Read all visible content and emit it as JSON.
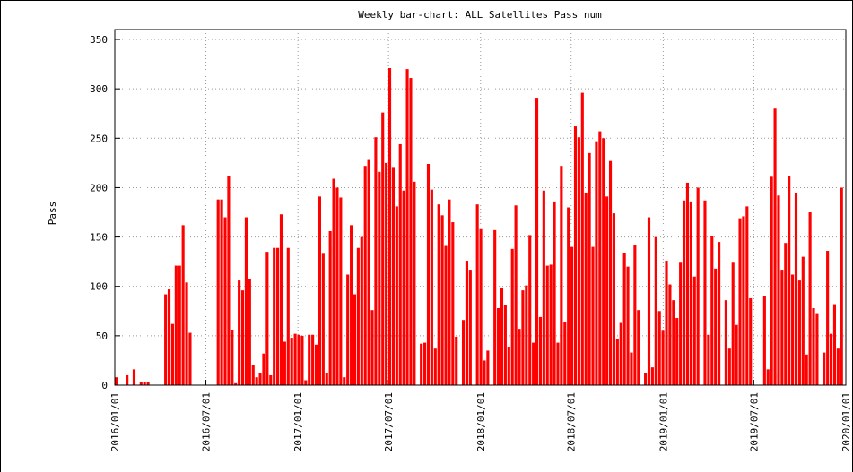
{
  "chart_data": {
    "type": "bar",
    "title": "Weekly bar-chart: ALL Satellites Pass num",
    "y_label": "Pass",
    "color": "#ff0000",
    "grid": true,
    "xlim": [
      "2016/01/01",
      "2020/01/01"
    ],
    "xticks": [
      "2016/01/01",
      "2016/07/01",
      "2017/01/01",
      "2017/07/01",
      "2018/01/01",
      "2018/07/01",
      "2019/01/01",
      "2019/07/01",
      "2020/01/01"
    ],
    "ylim": [
      0,
      360
    ],
    "yticks": [
      0,
      50,
      100,
      150,
      200,
      250,
      300,
      350
    ],
    "values": [
      8,
      0,
      0,
      10,
      0,
      16,
      0,
      3,
      3,
      3,
      0,
      0,
      0,
      0,
      92,
      97,
      62,
      121,
      121,
      162,
      104,
      53,
      0,
      0,
      0,
      0,
      0,
      0,
      0,
      188,
      188,
      170,
      212,
      56,
      2,
      106,
      96,
      170,
      107,
      20,
      8,
      12,
      32,
      135,
      10,
      139,
      139,
      173,
      44,
      139,
      48,
      52,
      51,
      50,
      5,
      51,
      51,
      41,
      191,
      133,
      12,
      156,
      209,
      200,
      190,
      8,
      112,
      162,
      92,
      139,
      150,
      222,
      228,
      76,
      251,
      216,
      276,
      225,
      321,
      220,
      181,
      244,
      197,
      320,
      311,
      206,
      0,
      42,
      43,
      224,
      198,
      37,
      183,
      172,
      141,
      188,
      165,
      49,
      0,
      66,
      126,
      116,
      0,
      183,
      158,
      25,
      35,
      0,
      157,
      78,
      98,
      81,
      39,
      138,
      182,
      57,
      96,
      101,
      152,
      43,
      291,
      69,
      197,
      121,
      122,
      186,
      43,
      222,
      64,
      180,
      140,
      262,
      251,
      296,
      195,
      235,
      140,
      247,
      257,
      250,
      191,
      227,
      174,
      47,
      63,
      134,
      120,
      33,
      142,
      76,
      0,
      12,
      170,
      18,
      150,
      75,
      55,
      126,
      102,
      86,
      68,
      124,
      187,
      205,
      186,
      110,
      200,
      0,
      187,
      51,
      151,
      118,
      145,
      0,
      86,
      37,
      124,
      61,
      169,
      171,
      181,
      88,
      0,
      0,
      0,
      90,
      16,
      211,
      280,
      192,
      116,
      144,
      212,
      112,
      195,
      106,
      130,
      31,
      175,
      78,
      72,
      0,
      33,
      136,
      52,
      82,
      37,
      200
    ]
  }
}
